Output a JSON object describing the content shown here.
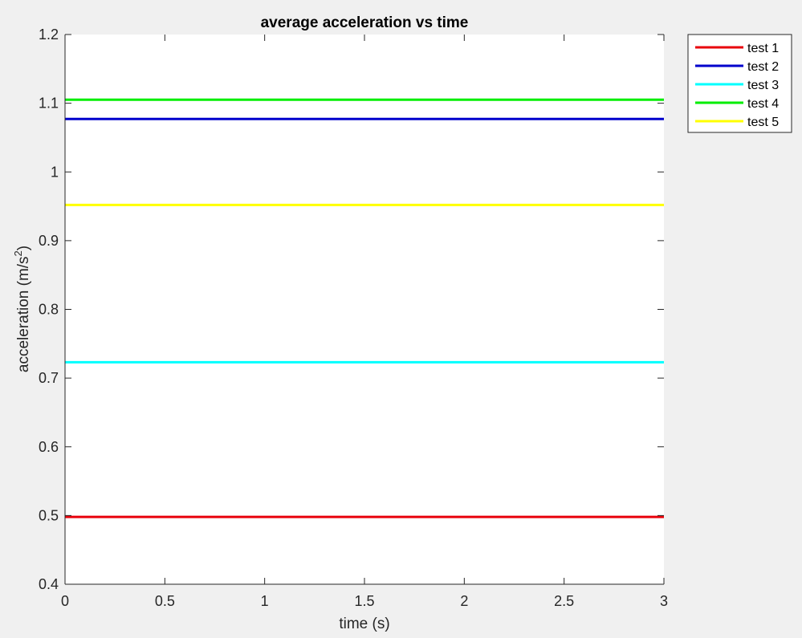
{
  "chart_data": {
    "type": "line",
    "title": "average acceleration vs time",
    "xlabel": "time (s)",
    "ylabel": "acceleration (m/s",
    "ylabel_superscript": "2",
    "ylabel_suffix": ")",
    "xlim": [
      0,
      3
    ],
    "ylim": [
      0.4,
      1.2
    ],
    "xticks": [
      0,
      0.5,
      1,
      1.5,
      2,
      2.5,
      3
    ],
    "xtick_labels": [
      "0",
      "0.5",
      "1",
      "1.5",
      "2",
      "2.5",
      "3"
    ],
    "yticks": [
      0.4,
      0.5,
      0.6,
      0.7,
      0.8,
      0.9,
      1.0,
      1.1,
      1.2
    ],
    "ytick_labels": [
      "0.4",
      "0.5",
      "0.6",
      "0.7",
      "0.8",
      "0.9",
      "1",
      "1.1",
      "1.2"
    ],
    "grid": false,
    "legend_position": "outside-top-right",
    "series": [
      {
        "name": "test 1",
        "color": "#e8000b",
        "x": [
          0,
          3
        ],
        "y": [
          0.498,
          0.498
        ]
      },
      {
        "name": "test 2",
        "color": "#0000cc",
        "x": [
          0,
          3
        ],
        "y": [
          1.077,
          1.077
        ]
      },
      {
        "name": "test 3",
        "color": "#00ffff",
        "x": [
          0,
          3
        ],
        "y": [
          0.723,
          0.723
        ]
      },
      {
        "name": "test 4",
        "color": "#00ee00",
        "x": [
          0,
          3
        ],
        "y": [
          1.105,
          1.105
        ]
      },
      {
        "name": "test 5",
        "color": "#ffff00",
        "x": [
          0,
          3
        ],
        "y": [
          0.952,
          0.952
        ]
      }
    ]
  }
}
